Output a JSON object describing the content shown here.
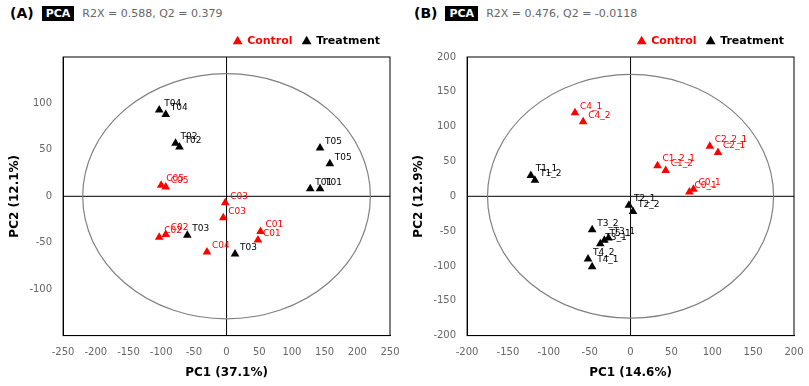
{
  "chart_data": [
    {
      "type": "scatter",
      "title": "(A)",
      "annotations": [
        {
          "text": "PCA",
          "color": "#ffffff",
          "background": "#000000"
        },
        {
          "text": "R2X = 0.588, Q2 = 0.379",
          "color": "#666666"
        }
      ],
      "x_label": "PC1 (37.1%)",
      "y_label": "PC2 (12.1%)",
      "xlim": [
        -250,
        250
      ],
      "ylim": [
        -150,
        150
      ],
      "xticks": [
        -250,
        -200,
        -150,
        -100,
        -50,
        0,
        50,
        100,
        150,
        200,
        250
      ],
      "yticks": [
        -100,
        -50,
        0,
        50,
        100
      ],
      "grid": false,
      "legend": "upper right",
      "hline": 0,
      "vline": 0,
      "ellipse": {
        "cx": 0,
        "cy": 0,
        "rx": 220,
        "ry": 132
      },
      "series": [
        {
          "name": "Control",
          "color": "#FF0000",
          "marker": "triangle",
          "x": [
            -100,
            -93,
            -93,
            -103,
            -2,
            -5,
            52,
            48,
            -30
          ],
          "values": [
            12,
            10,
            -41,
            -44,
            -7,
            -23,
            -38,
            -47,
            -60
          ],
          "labels": [
            "C05",
            "C05",
            "C02",
            "C02",
            "C03",
            "C03",
            "C01",
            "C01",
            "C04"
          ]
        },
        {
          "name": "Treatment",
          "color": "#000000",
          "marker": "triangle",
          "x": [
            -103,
            -93,
            -78,
            -72,
            143,
            158,
            128,
            143,
            -60,
            13
          ],
          "values": [
            93,
            88,
            57,
            53,
            52,
            35,
            8,
            8,
            -42,
            -62
          ],
          "labels": [
            "T04",
            "T04",
            "T02",
            "T02",
            "T05",
            "T05",
            "T01",
            "T01",
            "T03",
            "T03"
          ]
        }
      ]
    },
    {
      "type": "scatter",
      "title": "(B)",
      "annotations": [
        {
          "text": "PCA",
          "color": "#ffffff",
          "background": "#000000"
        },
        {
          "text": "R2X = 0.476, Q2 = -0.0118",
          "color": "#666666"
        }
      ],
      "x_label": "PC1 (14.6%)",
      "y_label": "PC2 (12.9%)",
      "xlim": [
        -200,
        200
      ],
      "ylim": [
        -200,
        200
      ],
      "xticks": [
        -200,
        -150,
        -100,
        -50,
        0,
        50,
        100,
        150,
        200
      ],
      "yticks": [
        -200,
        -150,
        -100,
        -50,
        0,
        50,
        100,
        150,
        200
      ],
      "grid": false,
      "legend": "upper right",
      "hline": 0,
      "vline": 0,
      "ellipse": {
        "cx": 0,
        "cy": 0,
        "rx": 175,
        "ry": 175
      },
      "series": [
        {
          "name": "Control",
          "color": "#FF0000",
          "marker": "triangle",
          "x": [
            -68,
            -58,
            33,
            43,
            97,
            107,
            77,
            72
          ],
          "values": [
            120,
            107,
            44,
            37,
            72,
            63,
            10,
            6
          ],
          "labels": [
            "C4_1",
            "C4_2",
            "C1_2_1",
            "C1_2",
            "C2_2_1",
            "C2_1",
            "C0_1",
            "C0_1"
          ]
        },
        {
          "name": "Treatment",
          "color": "#000000",
          "marker": "triangle",
          "x": [
            -122,
            -117,
            -2,
            3,
            -47,
            -32,
            -27,
            -37,
            -52,
            -47
          ],
          "values": [
            30,
            23,
            -13,
            -22,
            -48,
            -63,
            -60,
            -68,
            -90,
            -101
          ],
          "labels": [
            "T1_1",
            "T1_2",
            "T2_1",
            "T2_2",
            "T3_2",
            "T5_1",
            "T3_1",
            "T3_1",
            "T4_2",
            "T4_1"
          ]
        }
      ]
    }
  ]
}
